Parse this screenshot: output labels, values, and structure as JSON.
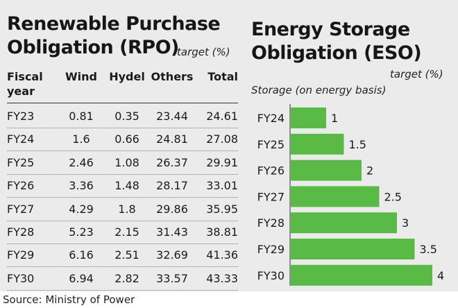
{
  "rpo": {
    "title_line1": "Renewable Purchase",
    "title_line2": "Obligation (RPO)",
    "unit": "target (%)",
    "headers": {
      "year_line1": "Fiscal",
      "year_line2": "year",
      "wind": "Wind",
      "hydel": "Hydel",
      "others": "Others",
      "total": "Total"
    },
    "rows": [
      {
        "year": "FY23",
        "wind": "0.81",
        "hydel": "0.35",
        "others": "23.44",
        "total": "24.61"
      },
      {
        "year": "FY24",
        "wind": "1.6",
        "hydel": "0.66",
        "others": "24.81",
        "total": "27.08"
      },
      {
        "year": "FY25",
        "wind": "2.46",
        "hydel": "1.08",
        "others": "26.37",
        "total": "29.91"
      },
      {
        "year": "FY26",
        "wind": "3.36",
        "hydel": "1.48",
        "others": "28.17",
        "total": "33.01"
      },
      {
        "year": "FY27",
        "wind": "4.29",
        "hydel": "1.8",
        "others": "29.86",
        "total": "35.95"
      },
      {
        "year": "FY28",
        "wind": "5.23",
        "hydel": "2.15",
        "others": "31.43",
        "total": "38.81"
      },
      {
        "year": "FY29",
        "wind": "6.16",
        "hydel": "2.51",
        "others": "32.69",
        "total": "41.36"
      },
      {
        "year": "FY30",
        "wind": "6.94",
        "hydel": "2.82",
        "others": "33.57",
        "total": "43.33"
      }
    ]
  },
  "eso": {
    "title_line1": "Energy Storage",
    "title_line2": "Obligation (ESO)",
    "unit": "target (%)",
    "storage_label": "Storage (on energy basis)"
  },
  "chart_data": {
    "type": "bar",
    "orientation": "horizontal",
    "title": "Energy Storage Obligation (ESO)",
    "subtitle": "target (%)",
    "xlabel": "",
    "ylabel": "Storage (on energy basis)",
    "categories": [
      "FY24",
      "FY25",
      "FY26",
      "FY27",
      "FY28",
      "FY29",
      "FY30"
    ],
    "values": [
      1,
      1.5,
      2,
      2.5,
      3,
      3.5,
      4
    ],
    "data_labels": [
      "1",
      "1.5",
      "2",
      "2.5",
      "3",
      "3.5",
      "4"
    ],
    "xlim": [
      0,
      4
    ],
    "grid": false,
    "bar_color": "#59bb45"
  },
  "source": "Source: Ministry of Power"
}
